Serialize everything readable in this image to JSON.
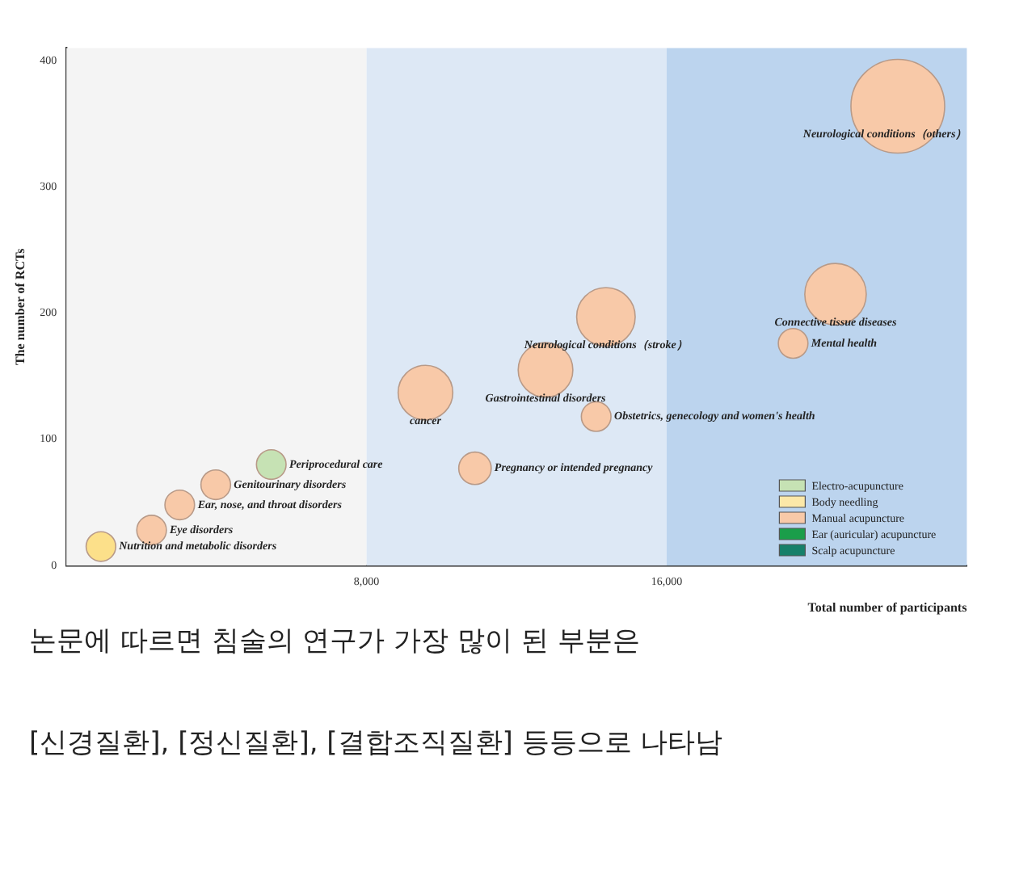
{
  "chart_data": {
    "type": "bubble",
    "xlabel": "Total number of participants",
    "ylabel": "The number of RCTs",
    "xlim": [
      0,
      24000
    ],
    "ylim": [
      0,
      410
    ],
    "xticks": [
      {
        "value": 8000,
        "label": "8,000"
      },
      {
        "value": 16000,
        "label": "16,000"
      }
    ],
    "yticks": [
      0,
      100,
      200,
      300,
      400
    ],
    "grid": false,
    "legend": "bottom right",
    "bands": [
      {
        "axis": "x",
        "from": 0,
        "to": 8000,
        "color": "#f4f4f4"
      },
      {
        "axis": "x",
        "from": 8000,
        "to": 16000,
        "color": "#dde8f5"
      },
      {
        "axis": "x",
        "from": 16000,
        "to": 24000,
        "color": "#bcd4ee"
      }
    ],
    "series": [
      {
        "x": [
          920,
          2270,
          3020,
          3980,
          5460,
          9570,
          10890,
          12770,
          14120,
          14380,
          20500,
          19370,
          22160
        ],
        "values": [
          15,
          28,
          48,
          64,
          80,
          137,
          77,
          155,
          118,
          197,
          215,
          176,
          364
        ],
        "sizes": [
          0.1,
          0.1,
          0.1,
          0.1,
          0.1,
          0.34,
          0.12,
          0.34,
          0.1,
          0.39,
          0.43,
          0.1,
          1
        ],
        "colors": [
          "#fce08a",
          "#f8c9a8",
          "#f8c9a8",
          "#f8c9a8",
          "#c6e2b4",
          "#f8c9a8",
          "#f8c9a8",
          "#f8c9a8",
          "#f8c9a8",
          "#f8c9a8",
          "#f8c9a8",
          "#f8c9a8",
          "#f8c9a8"
        ]
      },
      {
        "name": "Electro-acupuncture",
        "color": "#c6e2b4"
      },
      {
        "name": "Body needling",
        "color": "#fce8a8"
      },
      {
        "name": "Manual acupuncture",
        "color": "#f8c9a8"
      },
      {
        "name": "Ear (auricular) acupuncture",
        "color": "#1a9e4a"
      },
      {
        "name": "Scalp acupuncture",
        "color": "#16806a"
      }
    ],
    "annotations": [
      {
        "text": "Nutrition and metabolic disorders",
        "x": 920,
        "y": 15
      },
      {
        "text": "Eye disorders",
        "x": 2270,
        "y": 28
      },
      {
        "text": "Ear, nose, and throat disorders",
        "x": 3020,
        "y": 48
      },
      {
        "text": "Genitourinary disorders",
        "x": 3980,
        "y": 64
      },
      {
        "text": "Periprocedural care",
        "x": 5460,
        "y": 80
      },
      {
        "text": "cancer",
        "x": 9570,
        "y": 137
      },
      {
        "text": "Pregnancy or intended pregnancy",
        "x": 10890,
        "y": 77
      },
      {
        "text": "Gastrointestinal disorders",
        "x": 12770,
        "y": 155
      },
      {
        "text": "Obstetrics, genecology and women's health",
        "x": 14120,
        "y": 118
      },
      {
        "text": "Neurological conditions（stroke）",
        "x": 14380,
        "y": 197
      },
      {
        "text": "Connective tissue diseases",
        "x": 20500,
        "y": 215
      },
      {
        "text": "Mental health",
        "x": 19370,
        "y": 176
      },
      {
        "text": "Neurological conditions（others）",
        "x": 22160,
        "y": 364
      },
      "논문에 따르면 침술의 연구가 가장 많이 된 부분은",
      "[신경질환], [정신질환], [결합조직질환] 등등으로 나타남"
    ]
  }
}
